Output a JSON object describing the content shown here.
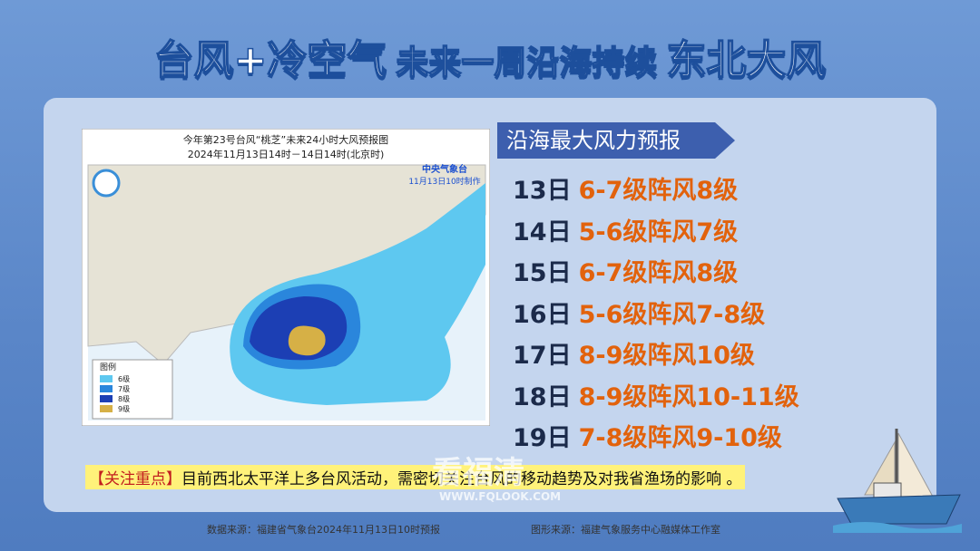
{
  "header": {
    "title_part1": "台风+冷空气",
    "title_part2": "未来一周沿海持续",
    "title_part3": "东北大风"
  },
  "map": {
    "title_line1": "今年第23号台风“桃芝”未来24小时大风预报图",
    "title_line2": "2024年11月13日14时－14日14时(北京时)",
    "agency": "中央气象台",
    "made_time": "11月13日10时制作",
    "legend": {
      "title": "图例",
      "items": [
        {
          "label": "6级",
          "color": "#5ec8f0"
        },
        {
          "label": "7级",
          "color": "#2a86dc"
        },
        {
          "label": "8级",
          "color": "#1c3fb4"
        },
        {
          "label": "9级",
          "color": "#d6b046"
        }
      ]
    }
  },
  "forecast": {
    "heading": "沿海最大风力预报",
    "rows": [
      {
        "day": "13日",
        "wind": "6-7级阵风8级"
      },
      {
        "day": "14日",
        "wind": "5-6级阵风7级"
      },
      {
        "day": "15日",
        "wind": "6-7级阵风8级"
      },
      {
        "day": "16日",
        "wind": "5-6级阵风7-8级"
      },
      {
        "day": "17日",
        "wind": "8-9级阵风10级"
      },
      {
        "day": "18日",
        "wind": "8-9级阵风10-11级"
      },
      {
        "day": "19日",
        "wind": "7-8级阵风9-10级"
      }
    ]
  },
  "notice": {
    "tag": "【关注重点】",
    "text": "目前西北太平洋上多台风活动，需密切关注台风的移动趋势及对我省渔场的影响 。"
  },
  "footer": {
    "data_source": "数据来源：福建省气象台2024年11月13日10时预报",
    "graphic_source": "图形来源：福建气象服务中心融媒体工作室"
  },
  "watermark": {
    "brand": "看福清",
    "url": "WWW.FQLOOK.COM"
  }
}
